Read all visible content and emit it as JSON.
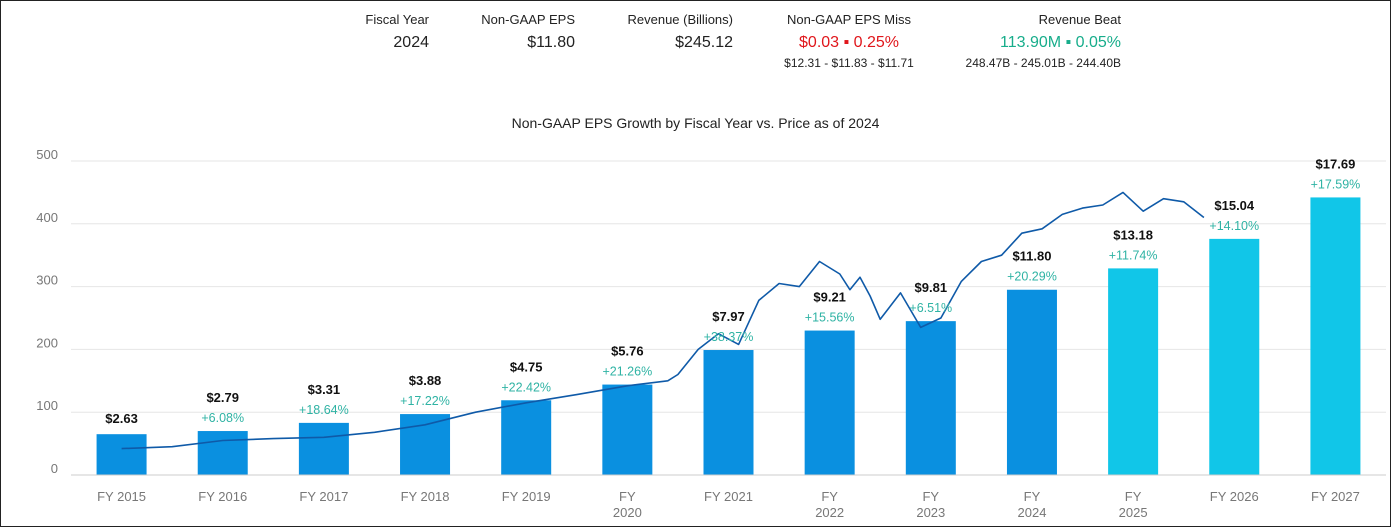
{
  "stats": {
    "fiscal_year": {
      "label": "Fiscal Year",
      "value": "2024"
    },
    "eps": {
      "label": "Non-GAAP EPS",
      "value": "$11.80"
    },
    "revenue": {
      "label": "Revenue (Billions)",
      "value": "$245.12"
    },
    "eps_miss": {
      "label": "Non-GAAP EPS Miss",
      "value": "$0.03 ▪ 0.25%",
      "range": "$12.31 - $11.83 - $11.71"
    },
    "revenue_beat": {
      "label": "Revenue Beat",
      "value": "113.90M ▪ 0.05%",
      "range": "248.47B - 245.01B - 244.40B"
    }
  },
  "colors": {
    "actual_bar": "#0a90e0",
    "estimate_bar": "#11c6e8",
    "price_line": "#0f5aa8",
    "growth_text": "#2fb3a4",
    "miss_text": "#e0161b",
    "beat_text": "#17ad8b",
    "grid": "#e6e6e6"
  },
  "chart_data": {
    "type": "bar",
    "title": "Non-GAAP EPS Growth by Fiscal Year vs. Price as of 2024",
    "ylim": [
      0,
      500
    ],
    "yticks": [
      0,
      100,
      200,
      300,
      400,
      500
    ],
    "grid": true,
    "categories": [
      "FY 2015",
      "FY 2016",
      "FY 2017",
      "FY 2018",
      "FY 2019",
      "FY 2020",
      "FY 2021",
      "FY 2022",
      "FY 2023",
      "FY 2024",
      "FY 2025",
      "FY 2026",
      "FY 2027"
    ],
    "category_lines": [
      [
        "FY 2015"
      ],
      [
        "FY 2016"
      ],
      [
        "FY 2017"
      ],
      [
        "FY 2018"
      ],
      [
        "FY 2019"
      ],
      [
        "FY",
        "2020"
      ],
      [
        "FY 2021"
      ],
      [
        "FY",
        "2022"
      ],
      [
        "FY",
        "2023"
      ],
      [
        "FY",
        "2024"
      ],
      [
        "FY",
        "2025"
      ],
      [
        "FY 2026"
      ],
      [
        "FY 2027"
      ]
    ],
    "bar_values": [
      65,
      70,
      83,
      97,
      119,
      144,
      199,
      230,
      245,
      295,
      329,
      376,
      442
    ],
    "estimate": [
      false,
      false,
      false,
      false,
      false,
      false,
      false,
      false,
      false,
      false,
      true,
      true,
      true
    ],
    "eps_labels": [
      "$2.63",
      "$2.79",
      "$3.31",
      "$3.88",
      "$4.75",
      "$5.76",
      "$7.97",
      "$9.21",
      "$9.81",
      "$11.80",
      "$13.18",
      "$15.04",
      "$17.69"
    ],
    "growth_labels": [
      "",
      "+6.08%",
      "+18.64%",
      "+17.22%",
      "+22.42%",
      "+21.26%",
      "+38.37%",
      "+15.56%",
      "+6.51%",
      "+20.29%",
      "+11.74%",
      "+14.10%",
      "+17.59%"
    ],
    "price_series": {
      "x": [
        0.5,
        1.0,
        1.5,
        2.0,
        2.5,
        3.0,
        3.5,
        4.0,
        4.5,
        5.0,
        5.5,
        5.9,
        6.0,
        6.2,
        6.4,
        6.6,
        6.8,
        7.0,
        7.2,
        7.4,
        7.6,
        7.7,
        7.8,
        7.9,
        8.0,
        8.2,
        8.4,
        8.6,
        8.8,
        9.0,
        9.2,
        9.4,
        9.6,
        9.8,
        10.0,
        10.2,
        10.4,
        10.6,
        10.8,
        11.0,
        11.2
      ],
      "y": [
        42,
        45,
        55,
        58,
        60,
        68,
        80,
        100,
        115,
        128,
        142,
        150,
        160,
        200,
        225,
        208,
        278,
        305,
        300,
        340,
        320,
        295,
        315,
        285,
        248,
        290,
        235,
        250,
        308,
        340,
        350,
        385,
        392,
        415,
        425,
        430,
        450,
        420,
        440,
        435,
        410
      ]
    }
  }
}
